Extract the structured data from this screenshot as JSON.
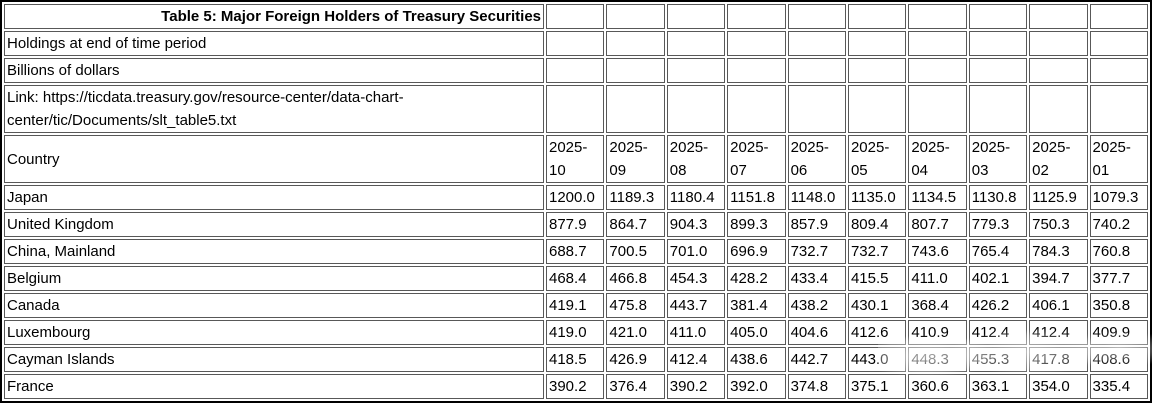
{
  "table": {
    "title": "Table 5: Major Foreign Holders of Treasury Securities",
    "subtitle_holdings": "Holdings at end of time period",
    "subtitle_units": "Billions of dollars",
    "link_line": "Link: https://ticdata.treasury.gov/resource-center/data-chart-center/tic/Documents/slt_table5.txt",
    "country_header": "Country",
    "periods": [
      "2025-10",
      "2025-09",
      "2025-08",
      "2025-07",
      "2025-06",
      "2025-05",
      "2025-04",
      "2025-03",
      "2025-02",
      "2025-01"
    ],
    "rows": [
      {
        "country": "Japan",
        "values": [
          "1200.0",
          "1189.3",
          "1180.4",
          "1151.8",
          "1148.0",
          "1135.0",
          "1134.5",
          "1130.8",
          "1125.9",
          "1079.3"
        ]
      },
      {
        "country": "United Kingdom",
        "values": [
          "877.9",
          "864.7",
          "904.3",
          "899.3",
          "857.9",
          "809.4",
          "807.7",
          "779.3",
          "750.3",
          "740.2"
        ]
      },
      {
        "country": "China, Mainland",
        "values": [
          "688.7",
          "700.5",
          "701.0",
          "696.9",
          "732.7",
          "732.7",
          "743.6",
          "765.4",
          "784.3",
          "760.8"
        ]
      },
      {
        "country": "Belgium",
        "values": [
          "468.4",
          "466.8",
          "454.3",
          "428.2",
          "433.4",
          "415.5",
          "411.0",
          "402.1",
          "394.7",
          "377.7"
        ]
      },
      {
        "country": "Canada",
        "values": [
          "419.1",
          "475.8",
          "443.7",
          "381.4",
          "438.2",
          "430.1",
          "368.4",
          "426.2",
          "406.1",
          "350.8"
        ]
      },
      {
        "country": "Luxembourg",
        "values": [
          "419.0",
          "421.0",
          "411.0",
          "405.0",
          "404.6",
          "412.6",
          "410.9",
          "412.4",
          "412.4",
          "409.9"
        ]
      },
      {
        "country": "Cayman Islands",
        "values": [
          "418.5",
          "426.9",
          "412.4",
          "438.6",
          "442.7",
          "443.0",
          "448.3",
          "455.3",
          "417.8",
          "408.6"
        ]
      },
      {
        "country": "France",
        "values": [
          "390.2",
          "376.4",
          "390.2",
          "392.0",
          "374.8",
          "375.1",
          "360.6",
          "363.1",
          "354.0",
          "335.4"
        ]
      }
    ]
  },
  "chart_data": {
    "type": "table",
    "title": "Table 5: Major Foreign Holders of Treasury Securities",
    "subtitle": [
      "Holdings at end of time period",
      "Billions of dollars"
    ],
    "source_link": "https://ticdata.treasury.gov/resource-center/data-chart-center/tic/Documents/slt_table5.txt",
    "columns": [
      "Country",
      "2025-10",
      "2025-09",
      "2025-08",
      "2025-07",
      "2025-06",
      "2025-05",
      "2025-04",
      "2025-03",
      "2025-02",
      "2025-01"
    ],
    "rows": [
      [
        "Japan",
        1200.0,
        1189.3,
        1180.4,
        1151.8,
        1148.0,
        1135.0,
        1134.5,
        1130.8,
        1125.9,
        1079.3
      ],
      [
        "United Kingdom",
        877.9,
        864.7,
        904.3,
        899.3,
        857.9,
        809.4,
        807.7,
        779.3,
        750.3,
        740.2
      ],
      [
        "China, Mainland",
        688.7,
        700.5,
        701.0,
        696.9,
        732.7,
        732.7,
        743.6,
        765.4,
        784.3,
        760.8
      ],
      [
        "Belgium",
        468.4,
        466.8,
        454.3,
        428.2,
        433.4,
        415.5,
        411.0,
        402.1,
        394.7,
        377.7
      ],
      [
        "Canada",
        419.1,
        475.8,
        443.7,
        381.4,
        438.2,
        430.1,
        368.4,
        426.2,
        406.1,
        350.8
      ],
      [
        "Luxembourg",
        419.0,
        421.0,
        411.0,
        405.0,
        404.6,
        412.6,
        410.9,
        412.4,
        412.4,
        409.9
      ],
      [
        "Cayman Islands",
        418.5,
        426.9,
        412.4,
        438.6,
        442.7,
        443.0,
        448.3,
        455.3,
        417.8,
        408.6
      ],
      [
        "France",
        390.2,
        376.4,
        390.2,
        392.0,
        374.8,
        375.1,
        360.6,
        363.1,
        354.0,
        335.4
      ]
    ]
  }
}
